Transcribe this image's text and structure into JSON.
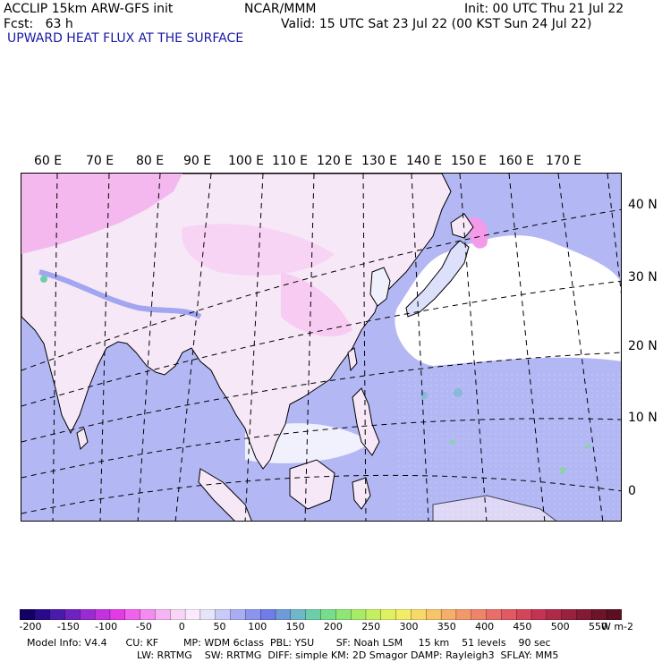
{
  "header": {
    "line1_left": "ACCLIP 15km ARW-GFS init",
    "line1_center": "NCAR/MMM",
    "line1_right": "Init: 00 UTC Thu 21 Jul 22",
    "line2_left": "Fcst:   63 h",
    "line2_right": "Valid: 15 UTC Sat 23 Jul 22 (00 KST Sun 24 Jul 22)",
    "field_title": "UPWARD HEAT FLUX AT THE SURFACE"
  },
  "map": {
    "region": "East and South Asia, Western Pacific",
    "lon_labels": [
      "60 E",
      "70 E",
      "80 E",
      "90 E",
      "100 E",
      "110 E",
      "120 E",
      "130 E",
      "140 E",
      "150 E",
      "160 E",
      "170 E"
    ],
    "lat_labels": [
      "40 N",
      "30 N",
      "20 N",
      "10 N",
      "0"
    ],
    "colors": {
      "ocean": "#b3b8f5",
      "land_low": "#f6e8f6",
      "land_neg": "#f4b8ef",
      "coast": "#000000",
      "grid": "#000000"
    }
  },
  "colorbar": {
    "labels": [
      "-200",
      "-150",
      "-100",
      "-50",
      "0",
      "50",
      "100",
      "150",
      "200",
      "250",
      "300",
      "350",
      "400",
      "450",
      "500",
      "550"
    ],
    "units": "W m-2",
    "colors": [
      "#120063",
      "#2a0a8a",
      "#4a1aa8",
      "#6e22c2",
      "#9a2bd4",
      "#c233e0",
      "#e13be6",
      "#f062ea",
      "#f48cf0",
      "#f7b4f4",
      "#f9d6f8",
      "#fbeafb",
      "#e4e4fb",
      "#c8caf7",
      "#a9aef3",
      "#8d94ee",
      "#6f7de8",
      "#6f9bd8",
      "#6fb8c8",
      "#6ccfa8",
      "#78dd8a",
      "#8ee676",
      "#a6ec66",
      "#c4ef62",
      "#dff062",
      "#f2ec66",
      "#f7d96a",
      "#f7c46a",
      "#f5af6a",
      "#f2996a",
      "#ee846a",
      "#e86e68",
      "#df5a62",
      "#d2465a",
      "#c23452",
      "#ae2a48",
      "#98223e",
      "#821a34",
      "#6c142a",
      "#5a1020"
    ]
  },
  "footer": {
    "line1": "Model Info: V4.4      CU: KF        MP: WDM 6class  PBL: YSU       SF: Noah LSM     15 km    51 levels    90 sec",
    "line2": "LW: RRTMG    SW: RRTMG  DIFF: simple KM: 2D Smagor DAMP: Rayleigh3  SFLAY: MM5"
  }
}
